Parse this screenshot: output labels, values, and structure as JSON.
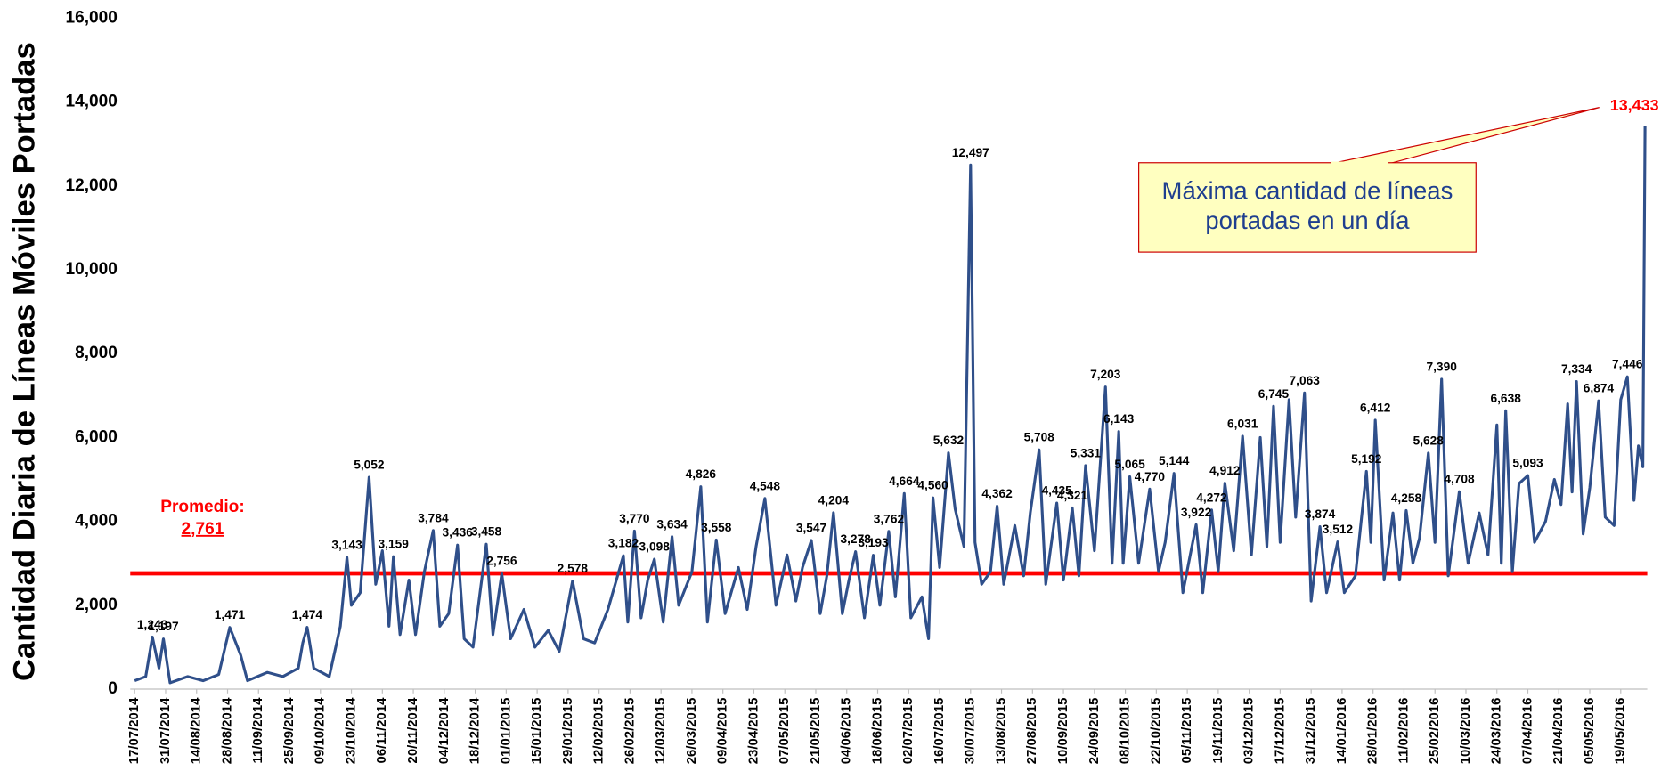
{
  "chart_data": {
    "type": "line",
    "y_label": "Cantidad Diaria de Líneas Móviles Portadas",
    "xlim": [
      "15/07/2014",
      "31/05/2016"
    ],
    "xticks": [
      "17/07/2014",
      "31/07/2014",
      "14/08/2014",
      "28/08/2014",
      "11/09/2014",
      "25/09/2014",
      "09/10/2014",
      "23/10/2014",
      "06/11/2014",
      "20/11/2014",
      "04/12/2014",
      "18/12/2014",
      "01/01/2015",
      "15/01/2015",
      "29/01/2015",
      "12/02/2015",
      "26/02/2015",
      "12/03/2015",
      "26/03/2015",
      "09/04/2015",
      "23/04/2015",
      "07/05/2015",
      "21/05/2015",
      "04/06/2015",
      "18/06/2015",
      "02/07/2015",
      "16/07/2015",
      "30/07/2015",
      "13/08/2015",
      "27/08/2015",
      "10/09/2015",
      "24/09/2015",
      "08/10/2015",
      "22/10/2015",
      "05/11/2015",
      "19/11/2015",
      "03/12/2015",
      "17/12/2015",
      "31/12/2015",
      "14/01/2016",
      "28/01/2016",
      "11/02/2016",
      "25/02/2016",
      "10/03/2016",
      "24/03/2016",
      "07/04/2016",
      "21/04/2016",
      "05/05/2016",
      "19/05/2016"
    ],
    "ylim": [
      0,
      16000
    ],
    "yticks": [
      0,
      {
        "value": 2000,
        "label": "2,000"
      },
      {
        "value": 4000,
        "label": "4,000"
      },
      {
        "value": 6000,
        "label": "6,000"
      },
      {
        "value": 8000,
        "label": "8,000"
      },
      {
        "value": 10000,
        "label": "10,000"
      },
      {
        "value": 12000,
        "label": "12,000"
      },
      {
        "value": 14000,
        "label": "14,000"
      },
      {
        "value": 16000,
        "label": "16,000"
      }
    ],
    "grid": false,
    "x": [
      "17/07/2014",
      "22/07/2014",
      "25/07/2014",
      "28/07/2014",
      "30/07/2014",
      "02/08/2014",
      "10/08/2014",
      "17/08/2014",
      "24/08/2014",
      "29/08/2014",
      "03/09/2014",
      "06/09/2014",
      "15/09/2014",
      "22/09/2014",
      "29/09/2014",
      "01/10/2014",
      "03/10/2014",
      "06/10/2014",
      "13/10/2014",
      "18/10/2014",
      "21/10/2014",
      "23/10/2014",
      "27/10/2014",
      "31/10/2014",
      "03/11/2014",
      "06/11/2014",
      "09/11/2014",
      "11/11/2014",
      "14/11/2014",
      "18/11/2014",
      "21/11/2014",
      "25/11/2014",
      "29/11/2014",
      "02/12/2014",
      "06/12/2014",
      "10/12/2014",
      "13/12/2014",
      "17/12/2014",
      "23/12/2014",
      "26/12/2014",
      "30/12/2014",
      "03/01/2015",
      "09/01/2015",
      "14/01/2015",
      "20/01/2015",
      "25/01/2015",
      "31/01/2015",
      "05/02/2015",
      "10/02/2015",
      "16/02/2015",
      "23/02/2015",
      "25/02/2015",
      "28/02/2015",
      "03/03/2015",
      "06/03/2015",
      "09/03/2015",
      "13/03/2015",
      "17/03/2015",
      "20/03/2015",
      "26/03/2015",
      "30/03/2015",
      "02/04/2015",
      "06/04/2015",
      "10/04/2015",
      "16/04/2015",
      "20/04/2015",
      "24/04/2015",
      "28/04/2015",
      "03/05/2015",
      "08/05/2015",
      "12/05/2015",
      "15/05/2015",
      "19/05/2015",
      "23/05/2015",
      "26/05/2015",
      "29/05/2015",
      "02/06/2015",
      "05/06/2015",
      "08/06/2015",
      "12/06/2015",
      "16/06/2015",
      "19/06/2015",
      "23/06/2015",
      "26/06/2015",
      "30/06/2015",
      "03/07/2015",
      "08/07/2015",
      "11/07/2015",
      "13/07/2015",
      "16/07/2015",
      "20/07/2015",
      "23/07/2015",
      "27/07/2015",
      "30/07/2015",
      "01/08/2015",
      "04/08/2015",
      "08/08/2015",
      "11/08/2015",
      "14/08/2015",
      "19/08/2015",
      "23/08/2015",
      "26/08/2015",
      "30/08/2015",
      "02/09/2015",
      "07/09/2015",
      "10/09/2015",
      "14/09/2015",
      "17/09/2015",
      "20/09/2015",
      "24/09/2015",
      "29/09/2015",
      "02/10/2015",
      "05/10/2015",
      "07/10/2015",
      "10/10/2015",
      "14/10/2015",
      "19/10/2015",
      "23/10/2015",
      "26/10/2015",
      "30/10/2015",
      "03/11/2015",
      "09/11/2015",
      "12/11/2015",
      "16/11/2015",
      "19/11/2015",
      "22/11/2015",
      "26/11/2015",
      "30/11/2015",
      "04/12/2015",
      "08/12/2015",
      "11/12/2015",
      "14/12/2015",
      "17/12/2015",
      "21/12/2015",
      "24/12/2015",
      "28/12/2015",
      "31/12/2015",
      "04/01/2016",
      "07/01/2016",
      "12/01/2016",
      "15/01/2016",
      "20/01/2016",
      "25/01/2016",
      "27/01/2016",
      "29/01/2016",
      "02/02/2016",
      "06/02/2016",
      "09/02/2016",
      "12/02/2016",
      "15/02/2016",
      "18/02/2016",
      "22/02/2016",
      "25/02/2016",
      "28/02/2016",
      "02/03/2016",
      "07/03/2016",
      "11/03/2016",
      "16/03/2016",
      "20/03/2016",
      "24/03/2016",
      "26/03/2016",
      "28/03/2016",
      "31/03/2016",
      "03/04/2016",
      "07/04/2016",
      "10/04/2016",
      "15/04/2016",
      "19/04/2016",
      "22/04/2016",
      "25/04/2016",
      "27/04/2016",
      "29/04/2016",
      "02/05/2016",
      "05/05/2016",
      "09/05/2016",
      "12/05/2016",
      "16/05/2016",
      "19/05/2016",
      "22/05/2016",
      "25/05/2016",
      "27/05/2016",
      "29/05/2016",
      "30/05/2016"
    ],
    "series": [
      {
        "color": "#2f4f8a",
        "values": [
          200,
          300,
          1243,
          500,
          1197,
          150,
          300,
          200,
          350,
          1471,
          800,
          200,
          400,
          300,
          500,
          1100,
          1474,
          500,
          300,
          1500,
          3143,
          2000,
          2300,
          5052,
          2500,
          3300,
          1500,
          3159,
          1300,
          2600,
          1300,
          2800,
          3784,
          1500,
          1800,
          3436,
          1200,
          1000,
          3458,
          1300,
          2756,
          1200,
          1900,
          1000,
          1400,
          900,
          2578,
          1200,
          1100,
          1900,
          3182,
          1600,
          3770,
          1700,
          2600,
          3098,
          1600,
          3634,
          2000,
          2800,
          4826,
          1600,
          3558,
          1800,
          2900,
          1900,
          3400,
          4548,
          2000,
          3200,
          2100,
          2900,
          3547,
          1800,
          2700,
          4204,
          1800,
          2600,
          3278,
          1700,
          3193,
          2000,
          3762,
          2200,
          4664,
          1700,
          2200,
          1200,
          4560,
          2900,
          5632,
          4300,
          3400,
          12497,
          3500,
          2500,
          2800,
          4362,
          2500,
          3900,
          2700,
          4200,
          5708,
          2500,
          4435,
          2600,
          4321,
          2700,
          5331,
          3300,
          7203,
          3000,
          6143,
          3000,
          5065,
          3000,
          4770,
          2800,
          3500,
          5144,
          2300,
          3922,
          2300,
          4272,
          2800,
          4912,
          3300,
          6031,
          3200,
          6000,
          3400,
          6745,
          3500,
          6900,
          4100,
          7063,
          2100,
          3874,
          2300,
          3512,
          2300,
          2700,
          5192,
          3500,
          6412,
          2600,
          4200,
          2600,
          4258,
          3000,
          3600,
          5628,
          3500,
          7390,
          2700,
          4708,
          3000,
          4200,
          3200,
          6300,
          3000,
          6638,
          2800,
          4900,
          5093,
          3500,
          4000,
          5000,
          4400,
          6800,
          4700,
          7334,
          3700,
          4800,
          6874,
          4100,
          3900,
          6900,
          7446,
          4500,
          5800,
          5300,
          13433
        ],
        "value_labels": [
          null,
          null,
          "1,243",
          null,
          "1,197",
          null,
          null,
          null,
          null,
          "1,471",
          null,
          null,
          null,
          null,
          null,
          null,
          "1,474",
          null,
          null,
          null,
          "3,143",
          null,
          null,
          "5,052",
          null,
          null,
          null,
          "3,159",
          null,
          null,
          null,
          null,
          "3,784",
          null,
          null,
          "3,436",
          null,
          null,
          "3,458",
          null,
          "2,756",
          null,
          null,
          null,
          null,
          null,
          "2,578",
          null,
          null,
          null,
          "3,182",
          null,
          "3,770",
          null,
          null,
          "3,098",
          null,
          "3,634",
          null,
          null,
          "4,826",
          null,
          "3,558",
          null,
          null,
          null,
          null,
          "4,548",
          null,
          null,
          null,
          null,
          "3,547",
          null,
          null,
          "4,204",
          null,
          null,
          "3,278",
          null,
          "3,193",
          null,
          "3,762",
          null,
          "4,664",
          null,
          null,
          null,
          "4,560",
          null,
          "5,632",
          null,
          null,
          "12,497",
          null,
          null,
          null,
          "4,362",
          null,
          null,
          null,
          null,
          "5,708",
          null,
          "4,435",
          null,
          "4,321",
          null,
          "5,331",
          null,
          "7,203",
          null,
          "6,143",
          null,
          "5,065",
          null,
          "4,770",
          null,
          null,
          "5,144",
          null,
          "3,922",
          null,
          "4,272",
          null,
          "4,912",
          null,
          "6,031",
          null,
          null,
          null,
          "6,745",
          null,
          null,
          null,
          "7,063",
          null,
          "3,874",
          null,
          "3,512",
          null,
          null,
          "5,192",
          null,
          "6,412",
          null,
          null,
          null,
          "4,258",
          null,
          null,
          "5,628",
          null,
          "7,390",
          null,
          "4,708",
          null,
          null,
          null,
          null,
          null,
          "6,638",
          null,
          null,
          "5,093",
          null,
          null,
          null,
          null,
          null,
          null,
          "7,334",
          null,
          null,
          "6,874",
          null,
          null,
          null,
          "7,446",
          null,
          null,
          null,
          "13,433"
        ]
      }
    ],
    "highlight_color": "#ff0000",
    "average": {
      "name": "Promedio:",
      "value": 2761,
      "label": "2,761",
      "color": "#ff0000"
    },
    "annotation": {
      "lines": [
        "Máxima cantidad de líneas",
        "portadas en un día"
      ],
      "fill": "#ffffc0",
      "border": "#cc0000",
      "text_color": "#1f3f8f"
    }
  }
}
